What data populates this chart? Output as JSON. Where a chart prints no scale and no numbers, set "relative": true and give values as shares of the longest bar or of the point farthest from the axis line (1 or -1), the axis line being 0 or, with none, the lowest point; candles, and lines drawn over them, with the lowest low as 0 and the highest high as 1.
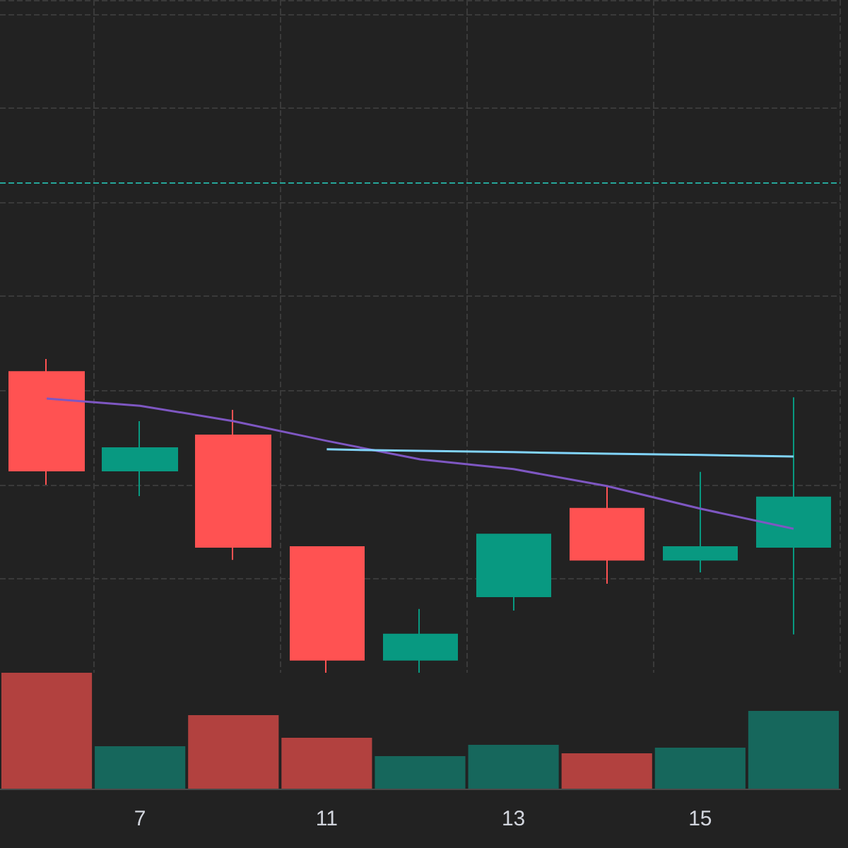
{
  "chart_data": [
    {
      "type": "candlestick",
      "relative": true,
      "grid": true,
      "marker": "none",
      "tick_labels": false,
      "categories": [
        null,
        "7",
        null,
        "11",
        null,
        "13",
        null,
        "15",
        null
      ],
      "ohlc": [
        [
          0.959,
          1,
          0.599,
          0.644
        ],
        [
          0.644,
          0.802,
          0.563,
          0.716
        ],
        [
          0.757,
          0.838,
          0.36,
          0.401
        ],
        [
          0.401,
          0.401,
          0,
          0.041
        ],
        [
          0.041,
          0.203,
          0,
          0.122
        ],
        [
          0.243,
          0.441,
          0.198,
          0.441
        ],
        [
          0.523,
          0.595,
          0.284,
          0.36
        ],
        [
          0.36,
          0.64,
          0.32,
          0.401
        ],
        [
          0.401,
          0.878,
          0.122,
          0.559
        ]
      ],
      "colors": [
        "#ff5252",
        "#089981",
        "#ff5252",
        "#ff5252",
        "#089981",
        "#089981",
        "#ff5252",
        "#089981",
        "#089981"
      ],
      "series": [
        {
          "type": "line",
          "color": "#7e57c2",
          "values": [
            0.874,
            0.851,
            0.802,
            0.739,
            0.68,
            0.649,
            0.595,
            0.523,
            0.459
          ]
        },
        {
          "type": "line",
          "color": "#81d4fa",
          "values": [
            null,
            null,
            null,
            0.712,
            0.707,
            0.703,
            0.698,
            0.694,
            0.689
          ]
        }
      ],
      "ref_lines": [
        {
          "axis": "y",
          "value": 1.559,
          "color": "#26a69a",
          "line_style": "dashed"
        }
      ]
    },
    {
      "type": "bar",
      "relative": true,
      "tick_labels": "x",
      "categories": [
        null,
        "7",
        null,
        "11",
        null,
        "13",
        null,
        "15",
        null
      ],
      "colors": [
        "#b2413f",
        "#16675c",
        "#b2413f",
        "#b2413f",
        "#16675c",
        "#16675c",
        "#b2413f",
        "#16675c",
        "#16675c"
      ],
      "values": [
        1,
        0.366,
        0.634,
        0.439,
        0.28,
        0.378,
        0.305,
        0.354,
        0.671
      ]
    }
  ]
}
